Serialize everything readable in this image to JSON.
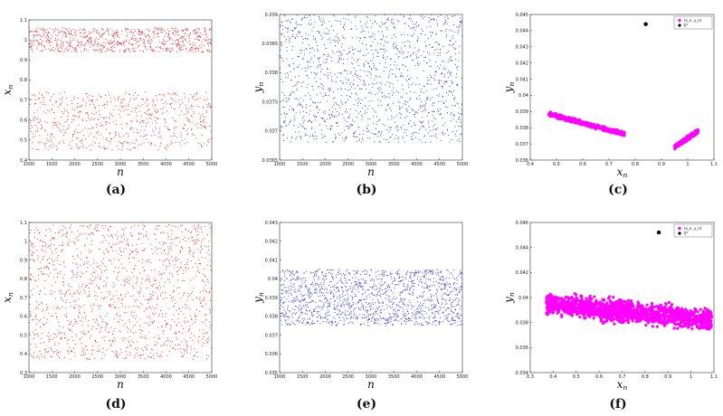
{
  "panel_labels": [
    "(a)",
    "(b)",
    "(c)",
    "(d)",
    "(e)",
    "(f)"
  ],
  "colors": {
    "x_series": "#e0202a",
    "y_series": "#2626d4",
    "pair": "#ff00ff",
    "fixed": "#000000"
  },
  "chart_data": [
    {
      "id": "a",
      "type": "scatter",
      "xlabel": "n",
      "ylabel": "x_n",
      "xlim": [
        1000,
        5000
      ],
      "ylim": [
        0.4,
        1.1
      ],
      "xticks": [
        1000,
        1500,
        2000,
        2500,
        3000,
        3500,
        4000,
        4500,
        5000
      ],
      "yticks": [
        0.4,
        0.5,
        0.6,
        0.7,
        0.8,
        0.9,
        1,
        1.1
      ],
      "series": [
        {
          "values_description": "",
          "color": "#e0202a",
          "bands": [
            [
              0.45,
              0.74
            ],
            [
              0.94,
              1.06
            ]
          ]
        }
      ]
    },
    {
      "id": "b",
      "type": "scatter",
      "xlabel": "n",
      "ylabel": "y_n",
      "xlim": [
        1000,
        5000
      ],
      "ylim": [
        0.0365,
        0.039
      ],
      "xticks": [
        1000,
        1500,
        2000,
        2500,
        3000,
        3500,
        4000,
        4500,
        5000
      ],
      "yticks": [
        0.0365,
        0.037,
        0.0375,
        0.038,
        0.0385,
        0.039
      ],
      "series": [
        {
          "color": "#2626d4",
          "bands": [
            [
              0.0368,
              0.039
            ]
          ]
        }
      ]
    },
    {
      "id": "c",
      "type": "scatter",
      "xlabel": "x_n",
      "ylabel": "y_n",
      "xlim": [
        0.4,
        1.1
      ],
      "ylim": [
        0.036,
        0.045
      ],
      "xticks": [
        0.4,
        0.5,
        0.6,
        0.7,
        0.8,
        0.9,
        1,
        1.1
      ],
      "yticks": [
        0.036,
        0.037,
        0.038,
        0.039,
        0.04,
        0.041,
        0.042,
        0.043,
        0.044,
        0.045
      ],
      "legend": [
        "(x_n, y_n)",
        "E*"
      ],
      "legend_position": "top-right",
      "fixed_point": {
        "x": 0.84,
        "y": 0.0444
      },
      "clusters": [
        {
          "x_from": 0.47,
          "x_to": 0.76,
          "y_from": 0.03885,
          "y_to": 0.0376,
          "spread": 0.0002
        },
        {
          "x_from": 0.95,
          "x_to": 1.04,
          "y_from": 0.0368,
          "y_to": 0.0378,
          "spread": 0.0002
        }
      ]
    },
    {
      "id": "d",
      "type": "scatter",
      "xlabel": "n",
      "ylabel": "x_n",
      "xlim": [
        1000,
        5000
      ],
      "ylim": [
        0.3,
        1.1
      ],
      "xticks": [
        1000,
        1500,
        2000,
        2500,
        3000,
        3500,
        4000,
        4500,
        5000
      ],
      "yticks": [
        0.3,
        0.4,
        0.5,
        0.6,
        0.7,
        0.8,
        0.9,
        1,
        1.1
      ],
      "series": [
        {
          "color": "#e0202a",
          "bands": [
            [
              0.37,
              1.09
            ]
          ]
        }
      ]
    },
    {
      "id": "e",
      "type": "scatter",
      "xlabel": "n",
      "ylabel": "y_n",
      "xlim": [
        1000,
        5000
      ],
      "ylim": [
        0.035,
        0.043
      ],
      "xticks": [
        1000,
        1500,
        2000,
        2500,
        3000,
        3500,
        4000,
        4500,
        5000
      ],
      "yticks": [
        0.035,
        0.036,
        0.037,
        0.038,
        0.039,
        0.04,
        0.041,
        0.042,
        0.043
      ],
      "series": [
        {
          "color": "#2626d4",
          "bands": [
            [
              0.0375,
              0.0405
            ]
          ]
        }
      ]
    },
    {
      "id": "f",
      "type": "scatter",
      "xlabel": "x_n",
      "ylabel": "y_n",
      "xlim": [
        0.3,
        1.1
      ],
      "ylim": [
        0.034,
        0.046
      ],
      "xticks": [
        0.3,
        0.4,
        0.5,
        0.6,
        0.7,
        0.8,
        0.9,
        1,
        1.1
      ],
      "yticks": [
        0.034,
        0.036,
        0.038,
        0.04,
        0.042,
        0.044,
        0.046
      ],
      "legend": [
        "(x_n, y_n)",
        "E*"
      ],
      "legend_position": "top-right",
      "fixed_point": {
        "x": 0.86,
        "y": 0.0452
      },
      "clusters": [
        {
          "x_from": 0.37,
          "x_to": 1.09,
          "y_from": 0.0395,
          "y_to": 0.0382,
          "spread": 0.0012
        }
      ]
    }
  ]
}
